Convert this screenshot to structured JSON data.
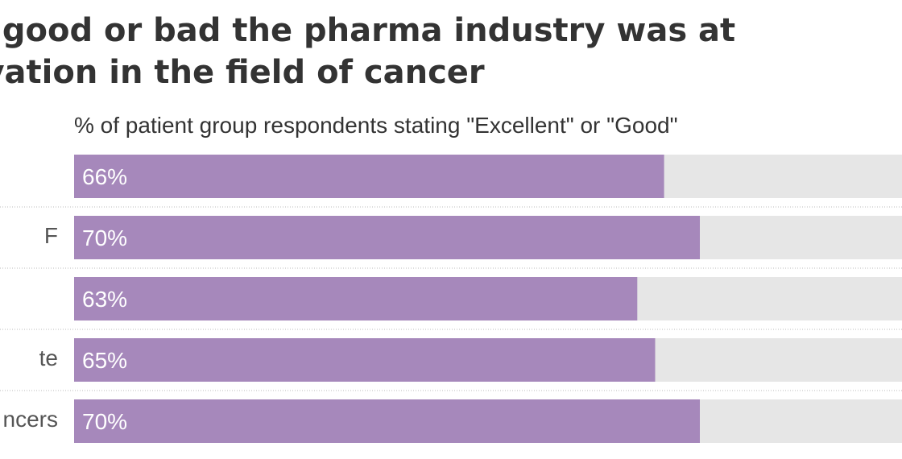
{
  "title_lines": [
    "w good or bad the pharma industry was at",
    "ovation in the field of cancer"
  ],
  "chart_data": {
    "type": "bar",
    "orientation": "horizontal",
    "subtitle": "% of patient group respondents stating \"Excellent\" or \"Good\"",
    "categories": [
      "",
      "F",
      "",
      "te",
      "ncers"
    ],
    "values": [
      66,
      70,
      63,
      65,
      70
    ],
    "value_labels": [
      "66%",
      "70%",
      "63%",
      "65%",
      "70%"
    ],
    "xlim": [
      0,
      100
    ],
    "grid": false,
    "colors": {
      "bar": "#a688bb",
      "track": "#e6e6e6",
      "value_text": "#ffffff",
      "separator": "#bbbbbb"
    }
  }
}
